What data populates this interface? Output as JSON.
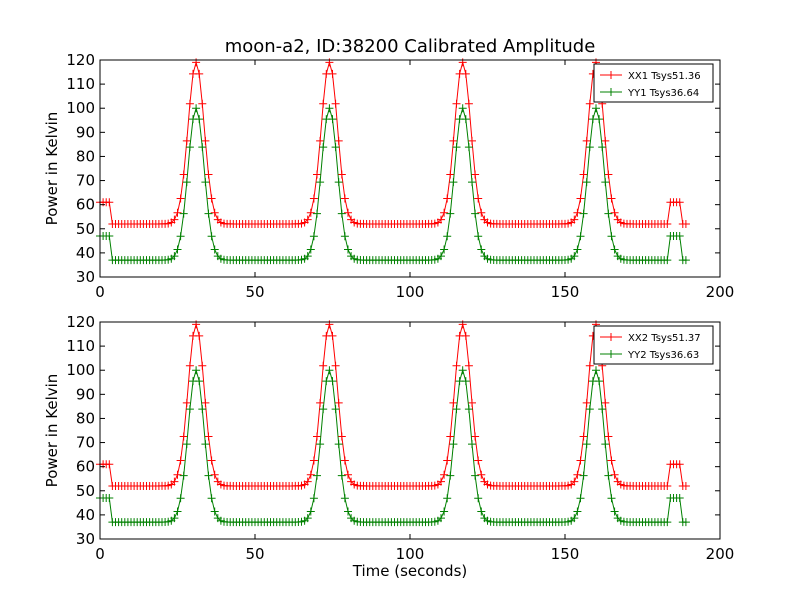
{
  "figure": {
    "title": "moon-a2, ID:38200 Calibrated Amplitude"
  },
  "chart_data": [
    {
      "type": "line",
      "ylabel": "Power in Kelvin",
      "xlabel": "",
      "xlim": [
        0,
        200
      ],
      "ylim": [
        30,
        120
      ],
      "xticks": [
        0,
        50,
        100,
        150,
        200
      ],
      "yticks": [
        30,
        40,
        50,
        60,
        70,
        80,
        90,
        100,
        110,
        120
      ],
      "legend_position": "top-right",
      "marker": "+",
      "peaks_x": [
        31,
        74,
        117,
        160
      ],
      "series": [
        {
          "name": "XX1 Tsys51.36",
          "color": "#ff0000",
          "baseline": 52,
          "peak": 119,
          "edge_level": 61
        },
        {
          "name": "YY1 Tsys36.64",
          "color": "#008000",
          "baseline": 37,
          "peak": 100,
          "edge_level": 47
        }
      ]
    },
    {
      "type": "line",
      "ylabel": "Power in Kelvin",
      "xlabel": "Time (seconds)",
      "xlim": [
        0,
        200
      ],
      "ylim": [
        30,
        120
      ],
      "xticks": [
        0,
        50,
        100,
        150,
        200
      ],
      "yticks": [
        30,
        40,
        50,
        60,
        70,
        80,
        90,
        100,
        110,
        120
      ],
      "legend_position": "top-right",
      "marker": "+",
      "peaks_x": [
        31,
        74,
        117,
        160
      ],
      "series": [
        {
          "name": "XX2 Tsys51.37",
          "color": "#ff0000",
          "baseline": 52,
          "peak": 119,
          "edge_level": 61
        },
        {
          "name": "YY2 Tsys36.63",
          "color": "#008000",
          "baseline": 37,
          "peak": 100,
          "edge_level": 47
        }
      ]
    }
  ]
}
